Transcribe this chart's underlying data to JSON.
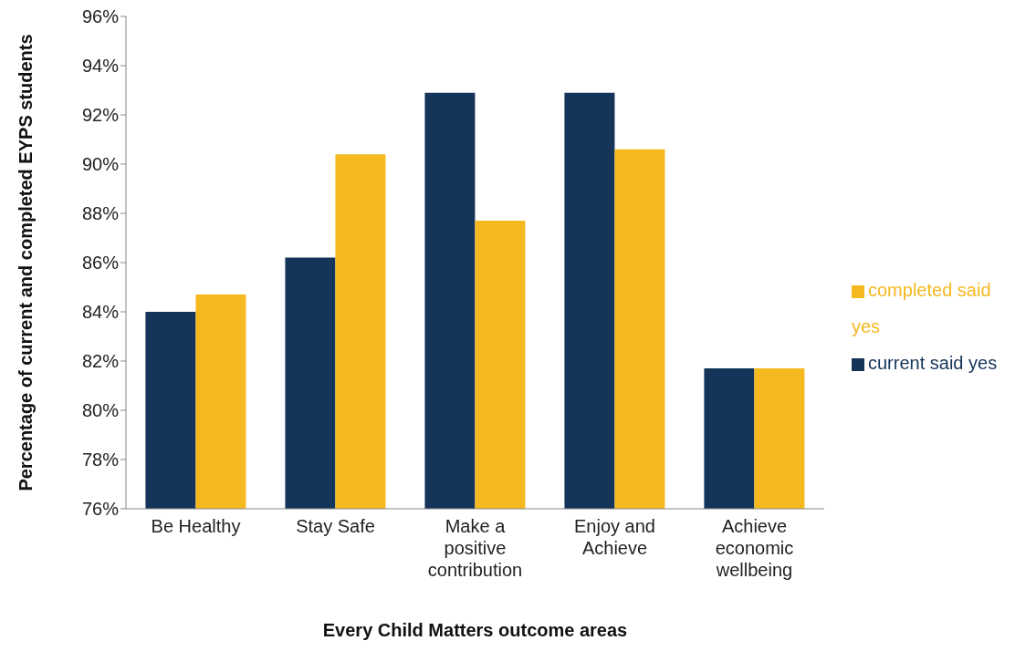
{
  "chart_data": {
    "type": "bar",
    "xlabel": "Every Child Matters outcome areas",
    "ylabel": "Percentage of current and completed EYPS students",
    "categories": [
      "Be Healthy",
      "Stay Safe",
      "Make a positive contribution",
      "Enjoy and Achieve",
      "Achieve economic wellbeing"
    ],
    "series": [
      {
        "name": "current said yes",
        "color": "#14345a",
        "values": [
          84.0,
          86.2,
          92.9,
          92.9,
          81.7
        ]
      },
      {
        "name": "completed said yes",
        "color": "#f5b81f",
        "values": [
          84.7,
          90.4,
          87.7,
          90.6,
          81.7
        ]
      }
    ],
    "ylim": [
      76,
      96
    ],
    "yticks": [
      {
        "value": 76,
        "label": "76%"
      },
      {
        "value": 78,
        "label": "78%"
      },
      {
        "value": 80,
        "label": "80%"
      },
      {
        "value": 82,
        "label": "82%"
      },
      {
        "value": 84,
        "label": "84%"
      },
      {
        "value": 86,
        "label": "86%"
      },
      {
        "value": 88,
        "label": "88%"
      },
      {
        "value": 90,
        "label": "90%"
      },
      {
        "value": 92,
        "label": "92%"
      },
      {
        "value": 94,
        "label": "94%"
      },
      {
        "value": 96,
        "label": "96%"
      }
    ],
    "grid": false,
    "legend": "right"
  }
}
